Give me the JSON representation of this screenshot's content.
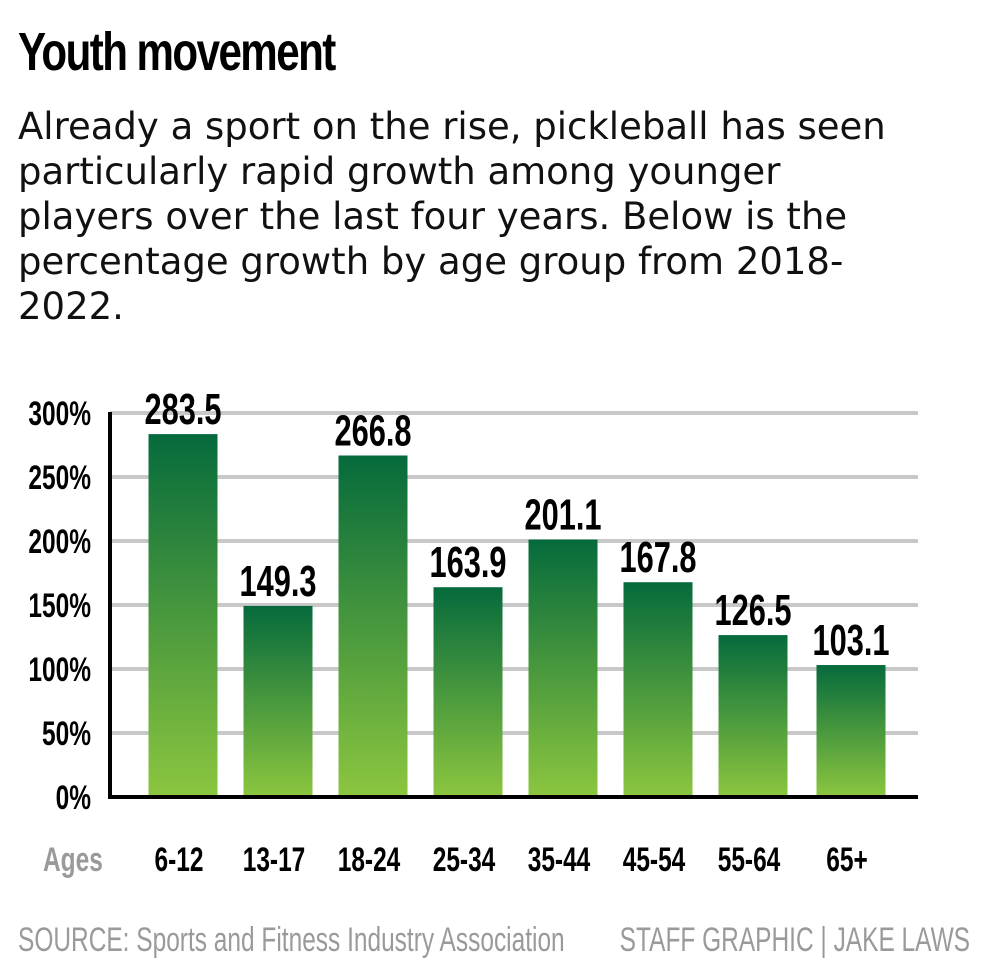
{
  "chart_data": {
    "type": "bar",
    "title": "Youth movement",
    "subtitle": "Already a sport on the rise, pickleball has seen particularly rapid growth among younger players over the last four years. Below is the percentage growth by age group from 2018-2022.",
    "xlabel": "Ages",
    "ylabel": "",
    "categories": [
      "6-12",
      "13-17",
      "18-24",
      "25-34",
      "35-44",
      "45-54",
      "55-64",
      "65+"
    ],
    "values": [
      283.5,
      149.3,
      266.8,
      163.9,
      201.1,
      167.8,
      126.5,
      103.1
    ],
    "value_labels": [
      "283.5",
      "149.3",
      "266.8",
      "163.9",
      "201.1",
      "167.8",
      "126.5",
      "103.1"
    ],
    "ylim": [
      0,
      300
    ],
    "yticks": [
      0,
      50,
      100,
      150,
      200,
      250,
      300
    ],
    "ytick_labels": [
      "0%",
      "50%",
      "100%",
      "150%",
      "200%",
      "250%",
      "300%"
    ],
    "grid": true,
    "legend": "none",
    "colors": {
      "bar_top": "#056a3c",
      "bar_bottom": "#8cc63f",
      "grid": "#c8c8c8",
      "axis": "#000000",
      "muted_text": "#9a9a9a"
    }
  },
  "footer": {
    "source": "SOURCE: Sports and Fitness Industry Association",
    "credit": "STAFF GRAPHIC | JAKE LAWS"
  }
}
